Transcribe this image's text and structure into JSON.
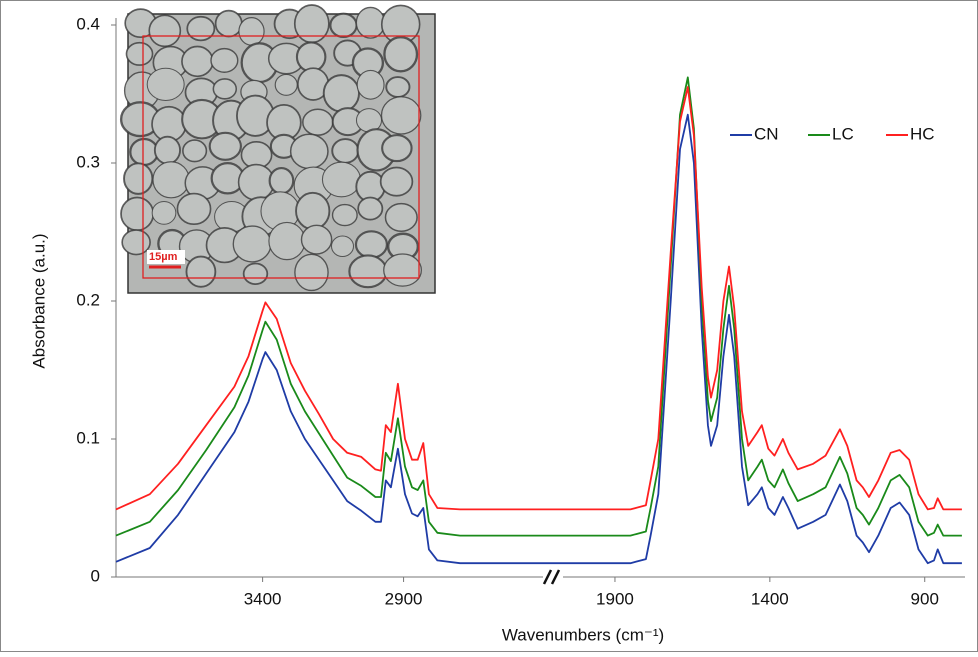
{
  "chart_data": {
    "type": "line",
    "ylabel": "Absorbance (a.u.)",
    "xlabel": "Wavenumbers (cm⁻¹)",
    "inset": {
      "scale_label": "15µm"
    },
    "ylim": [
      0,
      0.4
    ],
    "yticks": [
      0,
      0.1,
      0.2,
      0.3,
      0.4
    ],
    "xlim": [
      [
        3920,
        2370
      ],
      [
        2100,
        770
      ]
    ],
    "xticks": [
      3400,
      2900,
      1900,
      1400,
      900
    ],
    "grid": false,
    "legend": "upper right",
    "x": [
      3920,
      3800,
      3700,
      3600,
      3500,
      3450,
      3400,
      3390,
      3350,
      3300,
      3250,
      3200,
      3150,
      3100,
      3050,
      3000,
      2980,
      2963,
      2945,
      2920,
      2895,
      2870,
      2850,
      2830,
      2810,
      2780,
      2700,
      2600,
      2500,
      2400,
      2100,
      1850,
      1800,
      1785,
      1760,
      1720,
      1690,
      1665,
      1645,
      1620,
      1600,
      1590,
      1570,
      1550,
      1532,
      1515,
      1490,
      1470,
      1440,
      1426,
      1405,
      1385,
      1358,
      1340,
      1310,
      1260,
      1220,
      1174,
      1150,
      1120,
      1100,
      1080,
      1050,
      1010,
      981,
      950,
      920,
      890,
      870,
      858,
      840,
      800,
      780
    ],
    "series": [
      {
        "name": "CN",
        "color": "#1f3ca6",
        "values": [
          0.011,
          0.021,
          0.045,
          0.075,
          0.105,
          0.127,
          0.158,
          0.163,
          0.15,
          0.12,
          0.1,
          0.085,
          0.07,
          0.055,
          0.048,
          0.04,
          0.04,
          0.07,
          0.065,
          0.093,
          0.06,
          0.046,
          0.044,
          0.05,
          0.02,
          0.012,
          0.01,
          0.01,
          0.01,
          0.01,
          0.01,
          0.01,
          0.013,
          0.03,
          0.06,
          0.2,
          0.31,
          0.335,
          0.3,
          0.18,
          0.11,
          0.095,
          0.11,
          0.16,
          0.19,
          0.16,
          0.08,
          0.052,
          0.06,
          0.065,
          0.05,
          0.045,
          0.058,
          0.05,
          0.035,
          0.04,
          0.045,
          0.067,
          0.055,
          0.03,
          0.025,
          0.018,
          0.03,
          0.05,
          0.054,
          0.045,
          0.02,
          0.01,
          0.012,
          0.02,
          0.01,
          0.01,
          0.01
        ]
      },
      {
        "name": "LC",
        "color": "#1a8a1a",
        "values": [
          0.03,
          0.04,
          0.063,
          0.092,
          0.123,
          0.146,
          0.179,
          0.185,
          0.172,
          0.14,
          0.12,
          0.104,
          0.088,
          0.072,
          0.066,
          0.058,
          0.058,
          0.09,
          0.084,
          0.115,
          0.08,
          0.065,
          0.063,
          0.07,
          0.04,
          0.032,
          0.03,
          0.03,
          0.03,
          0.03,
          0.03,
          0.03,
          0.033,
          0.05,
          0.08,
          0.225,
          0.335,
          0.362,
          0.325,
          0.2,
          0.128,
          0.113,
          0.13,
          0.18,
          0.211,
          0.18,
          0.1,
          0.07,
          0.08,
          0.085,
          0.07,
          0.065,
          0.078,
          0.068,
          0.055,
          0.06,
          0.065,
          0.087,
          0.075,
          0.05,
          0.045,
          0.038,
          0.05,
          0.07,
          0.074,
          0.065,
          0.04,
          0.03,
          0.032,
          0.038,
          0.03,
          0.03,
          0.03
        ]
      },
      {
        "name": "HC",
        "color": "#ff2020",
        "values": [
          0.049,
          0.06,
          0.082,
          0.11,
          0.138,
          0.16,
          0.193,
          0.199,
          0.187,
          0.155,
          0.135,
          0.118,
          0.1,
          0.09,
          0.087,
          0.078,
          0.077,
          0.11,
          0.105,
          0.14,
          0.1,
          0.085,
          0.085,
          0.097,
          0.06,
          0.05,
          0.049,
          0.049,
          0.049,
          0.049,
          0.049,
          0.049,
          0.052,
          0.07,
          0.1,
          0.235,
          0.33,
          0.355,
          0.32,
          0.21,
          0.145,
          0.13,
          0.15,
          0.2,
          0.225,
          0.195,
          0.12,
          0.095,
          0.105,
          0.11,
          0.093,
          0.088,
          0.1,
          0.09,
          0.078,
          0.082,
          0.088,
          0.107,
          0.095,
          0.07,
          0.065,
          0.058,
          0.07,
          0.09,
          0.092,
          0.085,
          0.06,
          0.049,
          0.05,
          0.057,
          0.049,
          0.049,
          0.049
        ]
      }
    ]
  }
}
